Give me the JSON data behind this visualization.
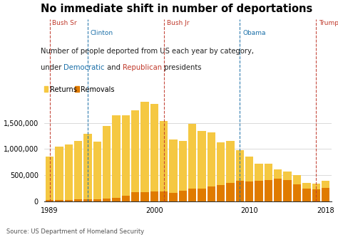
{
  "title": "No immediate shift in number of deportations",
  "subtitle_line1": "Number of people deported from US each year by category,",
  "subtitle_line2": "under Democratic and Republican presidents",
  "years": [
    1989,
    1990,
    1991,
    1992,
    1993,
    1994,
    1995,
    1996,
    1997,
    1998,
    1999,
    2000,
    2001,
    2002,
    2003,
    2004,
    2005,
    2006,
    2007,
    2008,
    2009,
    2010,
    2011,
    2012,
    2013,
    2014,
    2015,
    2016,
    2017,
    2018
  ],
  "returns": [
    832000,
    1022000,
    1061000,
    1105000,
    1243000,
    1094000,
    1394000,
    1573000,
    1536000,
    1570000,
    1714000,
    1675000,
    1349000,
    1012000,
    945000,
    1241000,
    1096000,
    1043000,
    808000,
    792000,
    582000,
    476000,
    323000,
    310000,
    178000,
    163000,
    170000,
    110000,
    120000,
    135000
  ],
  "removals": [
    30039,
    30039,
    33189,
    43671,
    42542,
    45674,
    50924,
    69680,
    114432,
    174813,
    183114,
    188467,
    189026,
    165168,
    211098,
    240665,
    246431,
    280974,
    319382,
    359795,
    395165,
    387242,
    396906,
    409849,
    438421,
    414481,
    333341,
    240255,
    226119,
    256085
  ],
  "presidents": [
    {
      "name": "Bush Sr",
      "year": 1989,
      "color": "#c0392b"
    },
    {
      "name": "Clinton",
      "year": 1993,
      "color": "#1a6fa8"
    },
    {
      "name": "Bush Jr",
      "year": 2001,
      "color": "#c0392b"
    },
    {
      "name": "Obama",
      "year": 2009,
      "color": "#1a6fa8"
    },
    {
      "name": "Trump",
      "year": 2017,
      "color": "#c0392b"
    }
  ],
  "returns_color": "#f5c842",
  "removals_color": "#e07b00",
  "background_color": "#ffffff",
  "source_text": "Source: US Department of Homeland Security",
  "ylim": [
    0,
    1900000
  ],
  "yticks": [
    0,
    500000,
    1000000,
    1500000
  ],
  "xticks": [
    1989,
    2000,
    2010,
    2018
  ],
  "democratic_color": "#1a6fa8",
  "republican_color": "#c0392b"
}
